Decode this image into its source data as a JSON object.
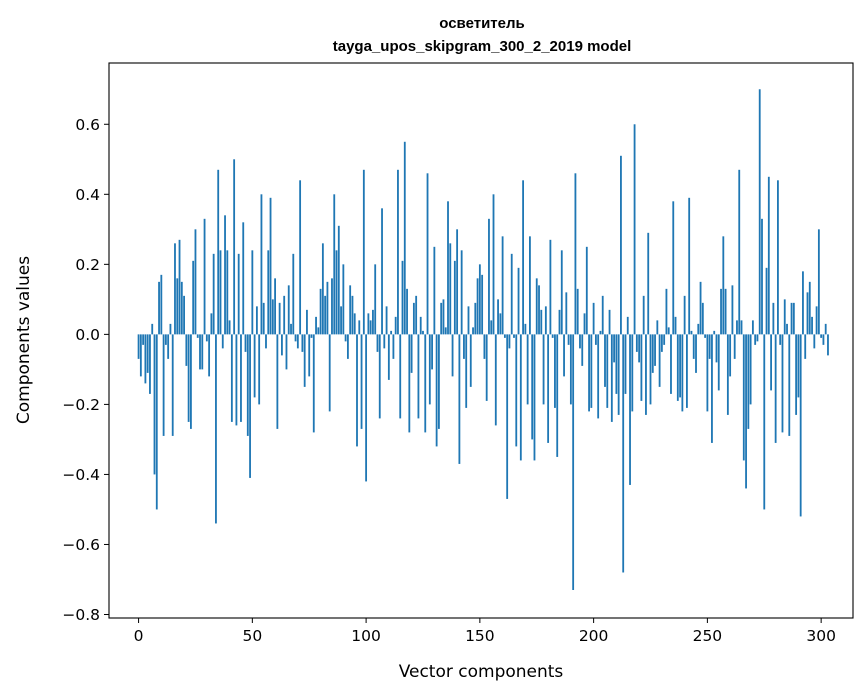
{
  "chart_data": {
    "type": "bar",
    "title_line1": "осветитель",
    "title_line2": "tayga_upos_skipgram_300_2_2019 model",
    "xlabel": "Vector components",
    "ylabel": "Components values",
    "xlim": [
      -13,
      314
    ],
    "ylim": [
      -0.81,
      0.775
    ],
    "xticks": [
      0,
      50,
      100,
      150,
      200,
      250,
      300
    ],
    "yticks": [
      -0.8,
      -0.6,
      -0.4,
      -0.2,
      0.0,
      0.2,
      0.4,
      0.6
    ],
    "ytick_labels": [
      "−0.8",
      "−0.6",
      "−0.4",
      "−0.2",
      "0.0",
      "0.2",
      "0.4",
      "0.6"
    ],
    "bar_color": "#1f77b4",
    "values": [
      -0.07,
      -0.12,
      -0.03,
      -0.14,
      -0.11,
      -0.17,
      0.03,
      -0.4,
      -0.5,
      0.15,
      0.17,
      -0.29,
      -0.03,
      -0.07,
      0.03,
      -0.29,
      0.26,
      0.16,
      0.27,
      0.15,
      0.11,
      -0.09,
      -0.25,
      -0.27,
      0.21,
      0.3,
      -0.01,
      -0.1,
      -0.1,
      0.33,
      -0.02,
      -0.12,
      0.06,
      0.23,
      -0.54,
      0.47,
      0.24,
      -0.04,
      0.34,
      0.24,
      0.04,
      -0.25,
      0.5,
      -0.26,
      0.23,
      -0.25,
      0.32,
      -0.05,
      -0.29,
      -0.41,
      0.24,
      -0.18,
      0.08,
      -0.2,
      0.4,
      0.09,
      -0.04,
      0.24,
      0.39,
      0.1,
      0.16,
      -0.27,
      0.09,
      -0.06,
      0.11,
      -0.1,
      0.14,
      0.03,
      0.23,
      -0.02,
      -0.04,
      0.44,
      -0.05,
      -0.15,
      0.07,
      -0.12,
      -0.01,
      -0.28,
      0.05,
      0.02,
      0.13,
      0.26,
      0.11,
      0.15,
      -0.22,
      0.16,
      0.4,
      0.24,
      0.31,
      0.08,
      0.2,
      -0.02,
      -0.07,
      0.14,
      0.11,
      0.06,
      -0.32,
      0.04,
      -0.27,
      0.47,
      -0.42,
      0.06,
      0.04,
      0.07,
      0.2,
      -0.05,
      -0.24,
      0.36,
      -0.04,
      0.08,
      -0.13,
      0.01,
      -0.07,
      0.05,
      0.47,
      -0.24,
      0.21,
      0.55,
      0.13,
      -0.28,
      -0.11,
      0.09,
      0.11,
      -0.24,
      0.05,
      0.01,
      -0.28,
      0.46,
      -0.2,
      -0.1,
      0.25,
      -0.32,
      -0.27,
      0.09,
      0.1,
      0.02,
      0.38,
      0.26,
      -0.12,
      0.21,
      0.3,
      -0.37,
      0.24,
      -0.07,
      -0.21,
      0.08,
      -0.15,
      0.02,
      0.09,
      0.16,
      0.2,
      0.17,
      -0.07,
      -0.19,
      0.33,
      0.04,
      0.4,
      -0.26,
      0.1,
      0.06,
      0.28,
      -0.01,
      -0.47,
      -0.04,
      0.23,
      -0.01,
      -0.32,
      0.19,
      -0.36,
      0.44,
      0.03,
      -0.2,
      0.28,
      -0.3,
      -0.36,
      0.16,
      0.14,
      0.07,
      -0.2,
      0.08,
      -0.31,
      0.27,
      -0.01,
      -0.21,
      -0.35,
      0.07,
      0.24,
      -0.12,
      0.12,
      -0.03,
      -0.2,
      -0.73,
      0.46,
      0.13,
      -0.04,
      -0.09,
      0.06,
      0.25,
      -0.22,
      -0.21,
      0.09,
      -0.03,
      -0.24,
      0.01,
      0.11,
      -0.15,
      -0.21,
      0.07,
      -0.25,
      -0.08,
      -0.17,
      -0.23,
      0.51,
      -0.68,
      -0.17,
      0.05,
      -0.43,
      -0.22,
      0.6,
      -0.05,
      -0.08,
      -0.19,
      0.11,
      -0.23,
      0.29,
      -0.2,
      -0.11,
      -0.09,
      0.04,
      -0.15,
      -0.05,
      -0.03,
      0.13,
      0.02,
      -0.17,
      0.38,
      0.05,
      -0.19,
      -0.18,
      -0.22,
      0.11,
      -0.21,
      0.39,
      0.01,
      -0.07,
      -0.11,
      0.03,
      0.15,
      0.09,
      -0.01,
      -0.22,
      -0.07,
      -0.31,
      0.01,
      -0.08,
      -0.16,
      0.13,
      0.28,
      0.13,
      -0.23,
      -0.12,
      0.14,
      -0.07,
      0.04,
      0.47,
      0.04,
      -0.36,
      -0.44,
      -0.27,
      -0.2,
      0.04,
      -0.03,
      -0.02,
      0.7,
      0.33,
      -0.5,
      0.19,
      0.45,
      -0.16,
      0.09,
      -0.31,
      0.44,
      -0.03,
      -0.28,
      0.1,
      0.03,
      -0.29,
      0.09,
      0.09,
      -0.23,
      -0.18,
      -0.52,
      0.18,
      -0.07,
      0.12,
      0.15,
      0.05,
      -0.04,
      0.08,
      0.3,
      -0.01,
      -0.03,
      0.03,
      -0.06
    ]
  }
}
